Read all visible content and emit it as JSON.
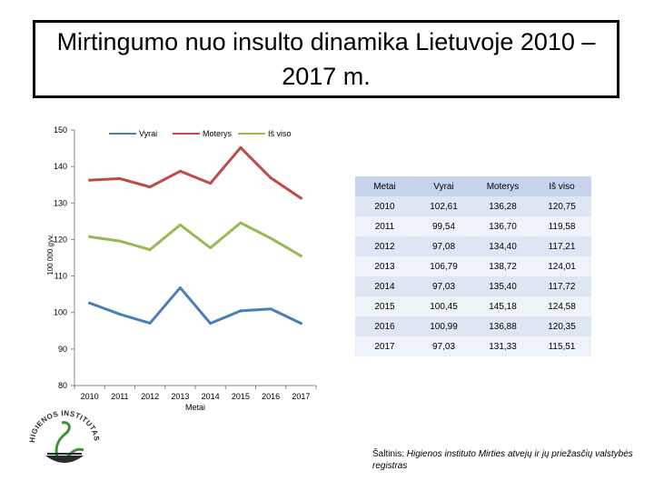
{
  "title": "Mirtingumo nuo insulto dinamika Lietuvoje 2010 –2017 m.",
  "chart_data": {
    "type": "line",
    "x": [
      "2010",
      "2011",
      "2012",
      "2013",
      "2014",
      "2015",
      "2016",
      "2017"
    ],
    "series": [
      {
        "name": "Vyrai",
        "color": "#4a7ebb",
        "values": [
          102.61,
          99.54,
          97.08,
          106.79,
          97.03,
          100.45,
          100.99,
          97.03
        ]
      },
      {
        "name": "Moterys",
        "color": "#be4b48",
        "values": [
          136.28,
          136.7,
          134.4,
          138.72,
          135.4,
          145.18,
          136.88,
          131.33
        ]
      },
      {
        "name": "Iš viso",
        "color": "#98b954",
        "values": [
          120.75,
          119.58,
          117.21,
          124.01,
          117.72,
          124.58,
          120.35,
          115.51
        ]
      }
    ],
    "ylim": [
      80,
      150
    ],
    "yticks": [
      "80",
      "90",
      "100",
      "110",
      "120",
      "130",
      "140",
      "150"
    ],
    "xlabel": "Metai",
    "ylabel": "100 000 gyv.",
    "legend": "top",
    "grid": false
  },
  "table": {
    "headers": [
      "Metai",
      "Vyrai",
      "Moterys",
      "Iš viso"
    ],
    "rows": [
      [
        "2010",
        "102,61",
        "136,28",
        "120,75"
      ],
      [
        "2011",
        "99,54",
        "136,70",
        "119,58"
      ],
      [
        "2012",
        "97,08",
        "134,40",
        "117,21"
      ],
      [
        "2013",
        "106,79",
        "138,72",
        "124,01"
      ],
      [
        "2014",
        "97,03",
        "135,40",
        "117,72"
      ],
      [
        "2015",
        "100,45",
        "145,18",
        "124,58"
      ],
      [
        "2016",
        "100,99",
        "136,88",
        "120,35"
      ],
      [
        "2017",
        "97,03",
        "131,33",
        "115,51"
      ]
    ]
  },
  "source": {
    "prefix": "Šaltinis: ",
    "text": "Higienos instituto Mirties atvejų ir jų priežasčių valstybės registras"
  },
  "logo": {
    "text": "HIGIENOS INSTITUTAS",
    "colors": {
      "dark": "#2b2b2b",
      "green": "#3f8f3a"
    }
  }
}
